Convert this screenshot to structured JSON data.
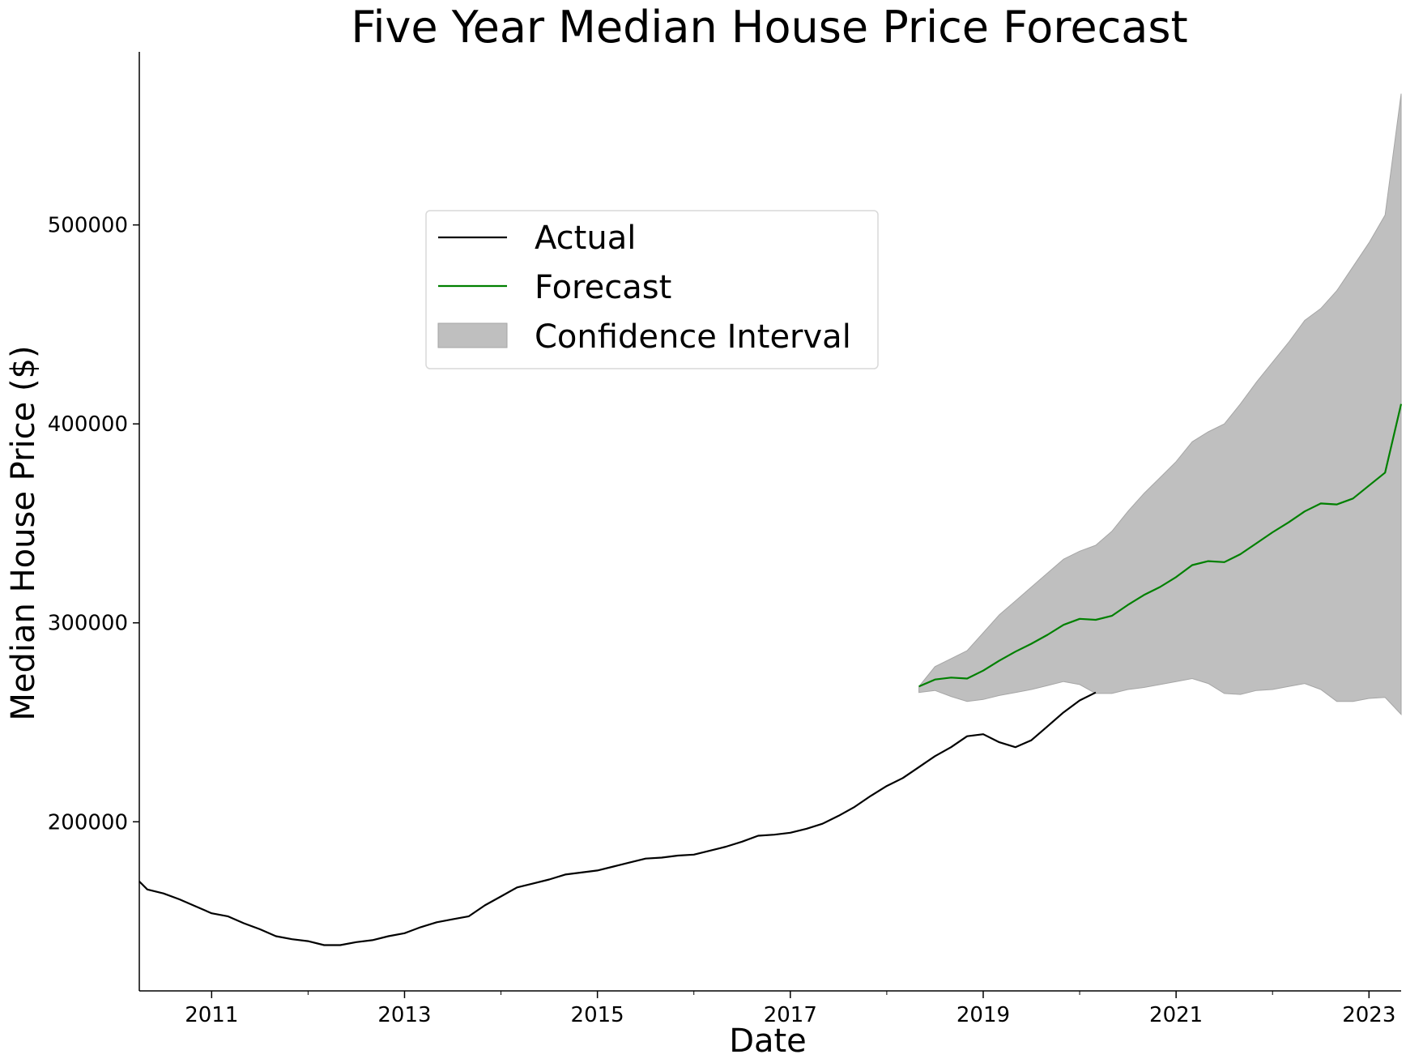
{
  "chart_data": {
    "type": "line",
    "title": "Five Year Median House Price Forecast",
    "xlabel": "Date",
    "ylabel": "Median House Price ($)",
    "x_axis": "date",
    "xlim": [
      "2010-04",
      "2023-05"
    ],
    "ylim": [
      115000,
      587000
    ],
    "x_ticks": [
      "2011",
      "2013",
      "2015",
      "2017",
      "2019",
      "2021",
      "2023"
    ],
    "y_ticks": [
      200000,
      300000,
      400000,
      500000
    ],
    "y_tick_labels": [
      "200000",
      "300000",
      "400000",
      "500000"
    ],
    "grid": false,
    "legend": {
      "placement": "upper-center",
      "entries": [
        "Actual",
        "Forecast",
        "Confidence Interval"
      ]
    },
    "colors": {
      "actual": "#000000",
      "forecast": "#008000",
      "confidence_fill": "#bfbfbf",
      "confidence_edge": "#a6a6a6"
    },
    "series": [
      {
        "name": "Actual",
        "color": "#000000",
        "points": [
          [
            "2010-04",
            170000
          ],
          [
            "2010-05",
            166000
          ],
          [
            "2010-07",
            164000
          ],
          [
            "2010-09",
            161000
          ],
          [
            "2010-11",
            157500
          ],
          [
            "2011-01",
            154000
          ],
          [
            "2011-03",
            152500
          ],
          [
            "2011-05",
            149000
          ],
          [
            "2011-07",
            146000
          ],
          [
            "2011-09",
            142500
          ],
          [
            "2011-11",
            141000
          ],
          [
            "2012-01",
            140000
          ],
          [
            "2012-03",
            138000
          ],
          [
            "2012-05",
            138000
          ],
          [
            "2012-07",
            139500
          ],
          [
            "2012-09",
            140500
          ],
          [
            "2012-11",
            142500
          ],
          [
            "2013-01",
            144000
          ],
          [
            "2013-03",
            147000
          ],
          [
            "2013-05",
            149500
          ],
          [
            "2013-07",
            151000
          ],
          [
            "2013-09",
            152500
          ],
          [
            "2013-11",
            158000
          ],
          [
            "2014-01",
            162500
          ],
          [
            "2014-03",
            167000
          ],
          [
            "2014-05",
            169000
          ],
          [
            "2014-07",
            171000
          ],
          [
            "2014-09",
            173500
          ],
          [
            "2014-11",
            174500
          ],
          [
            "2015-01",
            175500
          ],
          [
            "2015-03",
            177500
          ],
          [
            "2015-05",
            179500
          ],
          [
            "2015-07",
            181500
          ],
          [
            "2015-09",
            182000
          ],
          [
            "2015-11",
            183000
          ],
          [
            "2016-01",
            183500
          ],
          [
            "2016-03",
            185500
          ],
          [
            "2016-05",
            187500
          ],
          [
            "2016-07",
            190000
          ],
          [
            "2016-09",
            193000
          ],
          [
            "2016-11",
            193500
          ],
          [
            "2017-01",
            194500
          ],
          [
            "2017-03",
            196500
          ],
          [
            "2017-05",
            199000
          ],
          [
            "2017-07",
            203000
          ],
          [
            "2017-09",
            207500
          ],
          [
            "2017-11",
            213000
          ],
          [
            "2018-01",
            218000
          ],
          [
            "2018-03",
            222000
          ],
          [
            "2018-05",
            227500
          ],
          [
            "2018-07",
            233000
          ],
          [
            "2018-09",
            237500
          ],
          [
            "2018-11",
            243000
          ],
          [
            "2019-01",
            244000
          ],
          [
            "2019-03",
            240000
          ],
          [
            "2019-05",
            237500
          ],
          [
            "2019-07",
            241000
          ],
          [
            "2019-09",
            248000
          ],
          [
            "2019-11",
            255000
          ],
          [
            "2020-01",
            261000
          ],
          [
            "2020-03",
            265000
          ]
        ]
      },
      {
        "name": "Forecast",
        "color": "#008000",
        "points": [
          [
            "2018-05",
            268000
          ],
          [
            "2018-07",
            271500
          ],
          [
            "2018-09",
            272500
          ],
          [
            "2018-11",
            272000
          ],
          [
            "2019-01",
            276000
          ],
          [
            "2019-03",
            281000
          ],
          [
            "2019-05",
            285500
          ],
          [
            "2019-07",
            289500
          ],
          [
            "2019-09",
            294000
          ],
          [
            "2019-11",
            299000
          ],
          [
            "2020-01",
            302000
          ],
          [
            "2020-03",
            301500
          ],
          [
            "2020-05",
            303500
          ],
          [
            "2020-07",
            309000
          ],
          [
            "2020-09",
            314000
          ],
          [
            "2020-11",
            318000
          ],
          [
            "2021-01",
            323000
          ],
          [
            "2021-03",
            329000
          ],
          [
            "2021-05",
            331000
          ],
          [
            "2021-07",
            330500
          ],
          [
            "2021-09",
            334500
          ],
          [
            "2021-11",
            340000
          ],
          [
            "2022-01",
            345500
          ],
          [
            "2022-03",
            350500
          ],
          [
            "2022-05",
            356000
          ],
          [
            "2022-07",
            360000
          ],
          [
            "2022-09",
            359500
          ],
          [
            "2022-11",
            362500
          ],
          [
            "2023-01",
            369000
          ],
          [
            "2023-03",
            375500
          ],
          [
            "2023-05",
            410000
          ]
        ]
      }
    ],
    "confidence_interval": {
      "name": "Confidence Interval",
      "upper": [
        [
          "2018-05",
          268000
        ],
        [
          "2018-07",
          278000
        ],
        [
          "2018-09",
          282000
        ],
        [
          "2018-11",
          286000
        ],
        [
          "2019-01",
          295000
        ],
        [
          "2019-03",
          304000
        ],
        [
          "2019-05",
          311000
        ],
        [
          "2019-07",
          318000
        ],
        [
          "2019-09",
          325000
        ],
        [
          "2019-11",
          332000
        ],
        [
          "2020-01",
          336000
        ],
        [
          "2020-03",
          339000
        ],
        [
          "2020-05",
          346000
        ],
        [
          "2020-07",
          356000
        ],
        [
          "2020-09",
          365000
        ],
        [
          "2020-11",
          373000
        ],
        [
          "2021-01",
          381000
        ],
        [
          "2021-03",
          391000
        ],
        [
          "2021-05",
          396000
        ],
        [
          "2021-07",
          400000
        ],
        [
          "2021-09",
          410000
        ],
        [
          "2021-11",
          421000
        ],
        [
          "2022-01",
          431000
        ],
        [
          "2022-03",
          441000
        ],
        [
          "2022-05",
          452000
        ],
        [
          "2022-07",
          458000
        ],
        [
          "2022-09",
          467000
        ],
        [
          "2022-11",
          479000
        ],
        [
          "2023-01",
          491000
        ],
        [
          "2023-03",
          505000
        ],
        [
          "2023-05",
          566000
        ]
      ],
      "lower": [
        [
          "2018-05",
          265000
        ],
        [
          "2018-07",
          266000
        ],
        [
          "2018-09",
          263000
        ],
        [
          "2018-11",
          260500
        ],
        [
          "2019-01",
          261500
        ],
        [
          "2019-03",
          263500
        ],
        [
          "2019-05",
          265000
        ],
        [
          "2019-07",
          266500
        ],
        [
          "2019-09",
          268500
        ],
        [
          "2019-11",
          270500
        ],
        [
          "2020-01",
          269000
        ],
        [
          "2020-03",
          264500
        ],
        [
          "2020-05",
          264500
        ],
        [
          "2020-07",
          266500
        ],
        [
          "2020-09",
          267500
        ],
        [
          "2020-11",
          269000
        ],
        [
          "2021-01",
          270500
        ],
        [
          "2021-03",
          272000
        ],
        [
          "2021-05",
          269500
        ],
        [
          "2021-07",
          264500
        ],
        [
          "2021-09",
          264000
        ],
        [
          "2021-11",
          266000
        ],
        [
          "2022-01",
          266500
        ],
        [
          "2022-03",
          268000
        ],
        [
          "2022-05",
          269500
        ],
        [
          "2022-07",
          266500
        ],
        [
          "2022-09",
          260500
        ],
        [
          "2022-11",
          260500
        ],
        [
          "2023-01",
          262000
        ],
        [
          "2023-03",
          262500
        ],
        [
          "2023-05",
          254000
        ]
      ]
    }
  }
}
